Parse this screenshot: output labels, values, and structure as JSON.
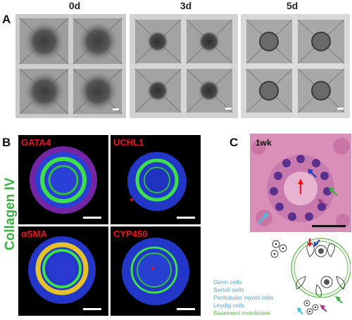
{
  "panel_a": {
    "letter": "A",
    "timepoints": [
      "0d",
      "3d",
      "5d"
    ]
  },
  "panel_b": {
    "letter": "B",
    "vertical_label": "Collagen IV",
    "stains": [
      "GATA4",
      "UCHL1",
      "αSMA",
      "CYP450"
    ]
  },
  "panel_c": {
    "letter": "C",
    "time_label": "1wk",
    "legend": [
      {
        "label": "Germ cells",
        "color": "#5aa6d6"
      },
      {
        "label": "Sertoli cells",
        "color": "#5aa6d6"
      },
      {
        "label": "Peritubular myoid cells",
        "color": "#5aa6d6"
      },
      {
        "label": "Leydig cells",
        "color": "#5aa6d6"
      },
      {
        "label": "Basement membrane",
        "color": "#5cb84a"
      }
    ]
  },
  "colors": {
    "stain_label": "#e8141e",
    "collagen_green": "#3cb043",
    "arrow_red": "#e8141e",
    "arrow_blue": "#1f3fbf",
    "arrow_green": "#3cb043",
    "arrow_magenta": "#a0408c",
    "arrow_cyan": "#3fc3d6"
  }
}
